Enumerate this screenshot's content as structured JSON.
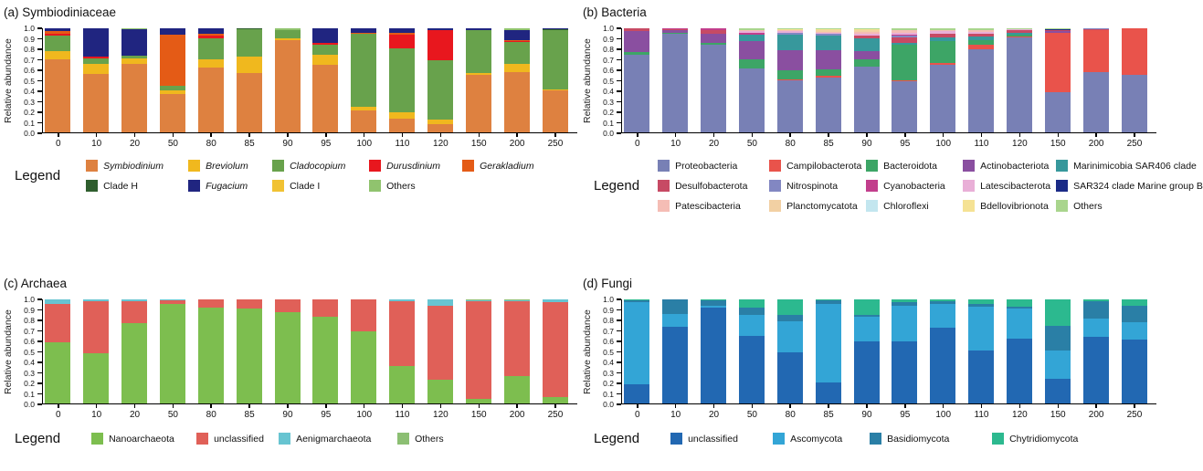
{
  "chart_data": [
    {
      "id": "a",
      "type": "bar",
      "stacked": true,
      "panel_label": "(a) Symbiodiniaceae",
      "legend_label": "Legend",
      "ylabel": "Relative abundance",
      "ylim": [
        0.0,
        1.0
      ],
      "yticks": [
        "1.0",
        "0.9",
        "0.8",
        "0.7",
        "0.6",
        "0.5",
        "0.4",
        "0.3",
        "0.2",
        "0.1",
        "0.0"
      ],
      "categories": [
        "0",
        "10",
        "20",
        "50",
        "80",
        "85",
        "90",
        "95",
        "100",
        "110",
        "120",
        "150",
        "200",
        "250"
      ],
      "legend_position": "bottom",
      "series": [
        {
          "name": "Symbiodinium",
          "italic": true,
          "color": "#DE8140",
          "values": [
            0.7,
            0.56,
            0.66,
            0.37,
            0.62,
            0.57,
            0.89,
            0.65,
            0.21,
            0.13,
            0.08,
            0.55,
            0.58,
            0.4
          ]
        },
        {
          "name": "Breviolum",
          "italic": true,
          "color": "#F0B81E",
          "values": [
            0.08,
            0.1,
            0.05,
            0.03,
            0.08,
            0.16,
            0.01,
            0.1,
            0.04,
            0.06,
            0.04,
            0.02,
            0.08,
            0.01
          ]
        },
        {
          "name": "Cladocopium",
          "italic": true,
          "color": "#68A24C",
          "values": [
            0.15,
            0.05,
            0.03,
            0.05,
            0.2,
            0.26,
            0.08,
            0.09,
            0.7,
            0.62,
            0.57,
            0.41,
            0.21,
            0.57
          ]
        },
        {
          "name": "Durusdinium",
          "italic": true,
          "color": "#E8171E",
          "values": [
            0.02,
            0.02,
            0.0,
            0.0,
            0.03,
            0.0,
            0.0,
            0.02,
            0.0,
            0.13,
            0.29,
            0.0,
            0.01,
            0.0
          ]
        },
        {
          "name": "Gerakladium",
          "italic": true,
          "color": "#E45B16",
          "values": [
            0.02,
            0.0,
            0.0,
            0.49,
            0.02,
            0.0,
            0.0,
            0.0,
            0.01,
            0.02,
            0.0,
            0.0,
            0.01,
            0.0
          ]
        },
        {
          "name": "Clade H",
          "italic": false,
          "color": "#2F5E2E",
          "values": [
            0.0,
            0.0,
            0.0,
            0.0,
            0.0,
            0.01,
            0.0,
            0.0,
            0.0,
            0.0,
            0.0,
            0.0,
            0.0,
            0.01
          ]
        },
        {
          "name": "Fugacium",
          "italic": true,
          "color": "#202580",
          "values": [
            0.03,
            0.27,
            0.25,
            0.06,
            0.05,
            0.0,
            0.0,
            0.14,
            0.04,
            0.04,
            0.02,
            0.02,
            0.09,
            0.01
          ]
        },
        {
          "name": "Clade I",
          "italic": false,
          "color": "#F1C233",
          "values": [
            0.0,
            0.0,
            0.0,
            0.0,
            0.0,
            0.0,
            0.0,
            0.0,
            0.0,
            0.0,
            0.0,
            0.0,
            0.0,
            0.0
          ]
        },
        {
          "name": "Others",
          "italic": false,
          "color": "#90C36E",
          "values": [
            0.0,
            0.0,
            0.01,
            0.0,
            0.0,
            0.0,
            0.02,
            0.0,
            0.0,
            0.0,
            0.0,
            0.0,
            0.02,
            0.0
          ]
        }
      ]
    },
    {
      "id": "b",
      "type": "bar",
      "stacked": true,
      "panel_label": "(b) Bacteria",
      "legend_label": "Legend",
      "ylabel": "Relative abundance",
      "ylim": [
        0.0,
        1.0
      ],
      "yticks": [
        "1.0",
        "0.9",
        "0.8",
        "0.7",
        "0.6",
        "0.5",
        "0.4",
        "0.3",
        "0.2",
        "0.1",
        "0.0"
      ],
      "categories": [
        "0",
        "10",
        "20",
        "50",
        "80",
        "85",
        "90",
        "95",
        "100",
        "110",
        "120",
        "150",
        "200",
        "250"
      ],
      "legend_position": "bottom",
      "series": [
        {
          "name": "Proteobacteria",
          "italic": false,
          "color": "#7880B5",
          "values": [
            0.75,
            0.95,
            0.84,
            0.61,
            0.5,
            0.53,
            0.63,
            0.49,
            0.65,
            0.8,
            0.91,
            0.39,
            0.58,
            0.55
          ]
        },
        {
          "name": "Campilobacterota",
          "italic": false,
          "color": "#E9534B",
          "values": [
            0.0,
            0.0,
            0.0,
            0.0,
            0.01,
            0.01,
            0.0,
            0.01,
            0.02,
            0.04,
            0.01,
            0.57,
            0.4,
            0.45
          ]
        },
        {
          "name": "Bacteroidota",
          "italic": false,
          "color": "#3DA566",
          "values": [
            0.02,
            0.01,
            0.02,
            0.09,
            0.09,
            0.07,
            0.07,
            0.34,
            0.21,
            0.05,
            0.02,
            0.0,
            0.0,
            0.0
          ]
        },
        {
          "name": "Actinobacteriota",
          "italic": false,
          "color": "#8A4FA0",
          "values": [
            0.2,
            0.02,
            0.09,
            0.18,
            0.19,
            0.18,
            0.08,
            0.0,
            0.0,
            0.0,
            0.0,
            0.01,
            0.0,
            0.0
          ]
        },
        {
          "name": "Marinimicobia SAR406 clade",
          "italic": false,
          "color": "#37989C",
          "values": [
            0.0,
            0.0,
            0.0,
            0.06,
            0.15,
            0.14,
            0.12,
            0.02,
            0.03,
            0.03,
            0.02,
            0.0,
            0.0,
            0.0
          ]
        },
        {
          "name": "Desulfobacterota",
          "italic": false,
          "color": "#C74A64",
          "values": [
            0.03,
            0.01,
            0.03,
            0.0,
            0.0,
            0.0,
            0.03,
            0.05,
            0.04,
            0.03,
            0.02,
            0.01,
            0.01,
            0.0
          ]
        },
        {
          "name": "Nitrospinota",
          "italic": false,
          "color": "#8287C2",
          "values": [
            0.0,
            0.0,
            0.0,
            0.0,
            0.02,
            0.02,
            0.0,
            0.02,
            0.0,
            0.0,
            0.0,
            0.0,
            0.01,
            0.0
          ]
        },
        {
          "name": "Cyanobacteria",
          "italic": false,
          "color": "#C23E8C",
          "values": [
            0.0,
            0.01,
            0.02,
            0.02,
            0.0,
            0.0,
            0.0,
            0.01,
            0.0,
            0.0,
            0.0,
            0.0,
            0.0,
            0.0
          ]
        },
        {
          "name": "Latescibacterota",
          "italic": false,
          "color": "#E9AFD7",
          "values": [
            0.0,
            0.0,
            0.0,
            0.01,
            0.01,
            0.01,
            0.02,
            0.02,
            0.02,
            0.02,
            0.01,
            0.0,
            0.0,
            0.0
          ]
        },
        {
          "name": "SAR324 clade Marine group B",
          "italic": false,
          "color": "#1B2B87",
          "values": [
            0.0,
            0.0,
            0.0,
            0.0,
            0.0,
            0.0,
            0.0,
            0.0,
            0.0,
            0.0,
            0.0,
            0.01,
            0.0,
            0.0
          ]
        },
        {
          "name": "Patescibacteria",
          "italic": false,
          "color": "#F5BDB5",
          "values": [
            0.0,
            0.0,
            0.0,
            0.01,
            0.01,
            0.01,
            0.02,
            0.02,
            0.01,
            0.01,
            0.0,
            0.0,
            0.0,
            0.0
          ]
        },
        {
          "name": "Planctomycatota",
          "italic": false,
          "color": "#F2D0A3",
          "values": [
            0.0,
            0.0,
            0.0,
            0.0,
            0.0,
            0.01,
            0.01,
            0.0,
            0.0,
            0.0,
            0.0,
            0.0,
            0.0,
            0.0
          ]
        },
        {
          "name": "Chloroflexi",
          "italic": false,
          "color": "#C3E6EF",
          "values": [
            0.0,
            0.0,
            0.0,
            0.0,
            0.0,
            0.0,
            0.0,
            0.0,
            0.0,
            0.0,
            0.0,
            0.0,
            0.0,
            0.0
          ]
        },
        {
          "name": "Bdellovibrionota",
          "italic": false,
          "color": "#F5E294",
          "values": [
            0.0,
            0.0,
            0.0,
            0.0,
            0.01,
            0.01,
            0.01,
            0.0,
            0.0,
            0.0,
            0.0,
            0.0,
            0.0,
            0.0
          ]
        },
        {
          "name": "Others",
          "italic": false,
          "color": "#A9D58D",
          "values": [
            0.0,
            0.0,
            0.0,
            0.02,
            0.01,
            0.01,
            0.01,
            0.02,
            0.02,
            0.02,
            0.01,
            0.01,
            0.0,
            0.0
          ]
        }
      ]
    },
    {
      "id": "c",
      "type": "bar",
      "stacked": true,
      "panel_label": "(c) Archaea",
      "legend_label": "Legend",
      "ylabel": "Relative abundance",
      "ylim": [
        0.0,
        1.0
      ],
      "yticks": [
        "1.0",
        "0.9",
        "0.8",
        "0.7",
        "0.6",
        "0.5",
        "0.4",
        "0.3",
        "0.2",
        "0.1",
        "0.0"
      ],
      "categories": [
        "0",
        "10",
        "20",
        "50",
        "80",
        "85",
        "90",
        "95",
        "100",
        "110",
        "120",
        "150",
        "200",
        "250"
      ],
      "legend_position": "bottom",
      "series": [
        {
          "name": "Nanoarchaeota",
          "italic": false,
          "color": "#7DBE4F",
          "values": [
            0.59,
            0.48,
            0.77,
            0.96,
            0.92,
            0.91,
            0.88,
            0.83,
            0.69,
            0.36,
            0.23,
            0.04,
            0.26,
            0.06
          ]
        },
        {
          "name": "unclassified",
          "italic": false,
          "color": "#E06058",
          "values": [
            0.37,
            0.5,
            0.21,
            0.03,
            0.08,
            0.09,
            0.12,
            0.17,
            0.31,
            0.62,
            0.71,
            0.94,
            0.72,
            0.91
          ]
        },
        {
          "name": "Aenigmarchaeota",
          "italic": false,
          "color": "#67C4D1",
          "values": [
            0.04,
            0.02,
            0.02,
            0.01,
            0.0,
            0.0,
            0.0,
            0.0,
            0.0,
            0.02,
            0.06,
            0.01,
            0.01,
            0.03
          ]
        },
        {
          "name": "Others",
          "italic": false,
          "color": "#8CBF73",
          "values": [
            0.0,
            0.0,
            0.0,
            0.0,
            0.0,
            0.0,
            0.0,
            0.0,
            0.0,
            0.0,
            0.0,
            0.01,
            0.01,
            0.0
          ]
        }
      ]
    },
    {
      "id": "d",
      "type": "bar",
      "stacked": true,
      "panel_label": "(d) Fungi",
      "legend_label": "Legend",
      "ylabel": "Relative abundance",
      "ylim": [
        0.0,
        1.0
      ],
      "yticks": [
        "1.0",
        "0.9",
        "0.8",
        "0.7",
        "0.6",
        "0.5",
        "0.4",
        "0.3",
        "0.2",
        "0.1",
        "0.0"
      ],
      "categories": [
        "0",
        "10",
        "20",
        "50",
        "80",
        "85",
        "90",
        "95",
        "100",
        "110",
        "120",
        "150",
        "200",
        "250"
      ],
      "legend_position": "bottom",
      "series": [
        {
          "name": "unclassified",
          "italic": false,
          "color": "#2268B2",
          "values": [
            0.18,
            0.74,
            0.92,
            0.65,
            0.49,
            0.2,
            0.6,
            0.6,
            0.73,
            0.51,
            0.62,
            0.24,
            0.64,
            0.61
          ]
        },
        {
          "name": "Ascomycota",
          "italic": false,
          "color": "#33A5D6",
          "values": [
            0.79,
            0.12,
            0.02,
            0.2,
            0.3,
            0.76,
            0.23,
            0.34,
            0.23,
            0.42,
            0.29,
            0.27,
            0.18,
            0.17
          ]
        },
        {
          "name": "Basidiomycota",
          "italic": false,
          "color": "#2A7FA6",
          "values": [
            0.02,
            0.14,
            0.05,
            0.07,
            0.06,
            0.03,
            0.02,
            0.03,
            0.02,
            0.03,
            0.02,
            0.24,
            0.16,
            0.16
          ]
        },
        {
          "name": "Chytridiomycota",
          "italic": false,
          "color": "#2CB98F",
          "values": [
            0.01,
            0.0,
            0.01,
            0.08,
            0.15,
            0.01,
            0.15,
            0.03,
            0.02,
            0.04,
            0.07,
            0.25,
            0.02,
            0.06
          ]
        }
      ]
    }
  ]
}
